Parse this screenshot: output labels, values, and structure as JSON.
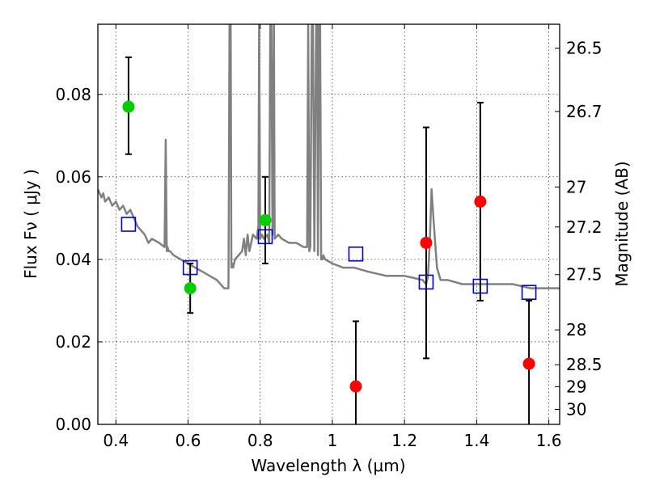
{
  "chart_data": {
    "type": "scatter",
    "title": "",
    "xlabel": "Wavelength  λ (μm)",
    "ylabel": "Flux  Fν  ( μJy )",
    "y2label": "Magnitude (AB)",
    "xlim": [
      0.35,
      1.63
    ],
    "ylim": [
      0.0,
      0.097
    ],
    "grid": true,
    "x_ticks": [
      {
        "value": 0.4,
        "label": "0.4"
      },
      {
        "value": 0.6,
        "label": "0.6"
      },
      {
        "value": 0.8,
        "label": "0.8"
      },
      {
        "value": 1.0,
        "label": "1"
      },
      {
        "value": 1.2,
        "label": "1.2"
      },
      {
        "value": 1.4,
        "label": "1.4"
      },
      {
        "value": 1.6,
        "label": "1.6"
      }
    ],
    "y_ticks": [
      {
        "value": 0.0,
        "label": "0.00"
      },
      {
        "value": 0.02,
        "label": "0.02"
      },
      {
        "value": 0.04,
        "label": "0.04"
      },
      {
        "value": 0.06,
        "label": "0.06"
      },
      {
        "value": 0.08,
        "label": "0.08"
      }
    ],
    "y2_ticks": [
      {
        "magnitude": 26.5,
        "label": "26.5"
      },
      {
        "magnitude": 26.7,
        "label": "26.7"
      },
      {
        "magnitude": 27.0,
        "label": "27"
      },
      {
        "magnitude": 27.2,
        "label": "27.2"
      },
      {
        "magnitude": 27.5,
        "label": "27.5"
      },
      {
        "magnitude": 28.0,
        "label": "28"
      },
      {
        "magnitude": 28.5,
        "label": "28.5"
      },
      {
        "magnitude": 29.0,
        "label": "29"
      },
      {
        "magnitude": 30.0,
        "label": "30"
      }
    ],
    "series": [
      {
        "kind": "line",
        "color": "#808080",
        "x": [
          0.35,
          0.36,
          0.365,
          0.37,
          0.38,
          0.39,
          0.4,
          0.41,
          0.42,
          0.43,
          0.44,
          0.45,
          0.46,
          0.47,
          0.48,
          0.485,
          0.49,
          0.5,
          0.52,
          0.535,
          0.538,
          0.541,
          0.543,
          0.546,
          0.55,
          0.56,
          0.58,
          0.6,
          0.62,
          0.64,
          0.66,
          0.68,
          0.7,
          0.712,
          0.715,
          0.718,
          0.72,
          0.722,
          0.725,
          0.73,
          0.74,
          0.75,
          0.755,
          0.76,
          0.765,
          0.77,
          0.78,
          0.79,
          0.795,
          0.797,
          0.8,
          0.805,
          0.81,
          0.82,
          0.825,
          0.828,
          0.831,
          0.834,
          0.838,
          0.84,
          0.85,
          0.86,
          0.88,
          0.9,
          0.92,
          0.93,
          0.933,
          0.936,
          0.939,
          0.943,
          0.946,
          0.95,
          0.955,
          0.958,
          0.96,
          0.963,
          0.966,
          0.969,
          0.972,
          0.975,
          0.98,
          1.0,
          1.03,
          1.06,
          1.1,
          1.15,
          1.2,
          1.25,
          1.26,
          1.265,
          1.27,
          1.275,
          1.28,
          1.29,
          1.3,
          1.32,
          1.36,
          1.4,
          1.45,
          1.5,
          1.55,
          1.6,
          1.63
        ],
        "y": [
          0.057,
          0.055,
          0.056,
          0.054,
          0.055,
          0.053,
          0.054,
          0.052,
          0.053,
          0.051,
          0.052,
          0.05,
          0.048,
          0.047,
          0.046,
          0.045,
          0.044,
          0.045,
          0.044,
          0.043,
          0.069,
          0.042,
          0.043,
          0.042,
          0.042,
          0.041,
          0.04,
          0.039,
          0.038,
          0.037,
          0.036,
          0.035,
          0.033,
          0.033,
          0.097,
          0.097,
          0.038,
          0.039,
          0.038,
          0.04,
          0.041,
          0.042,
          0.045,
          0.041,
          0.046,
          0.042,
          0.046,
          0.045,
          0.048,
          0.097,
          0.045,
          0.046,
          0.045,
          0.046,
          0.044,
          0.097,
          0.097,
          0.046,
          0.097,
          0.045,
          0.046,
          0.045,
          0.044,
          0.044,
          0.043,
          0.043,
          0.097,
          0.042,
          0.043,
          0.097,
          0.097,
          0.042,
          0.097,
          0.097,
          0.041,
          0.097,
          0.097,
          0.04,
          0.04,
          0.041,
          0.04,
          0.039,
          0.038,
          0.038,
          0.037,
          0.036,
          0.036,
          0.035,
          0.034,
          0.036,
          0.044,
          0.057,
          0.05,
          0.038,
          0.035,
          0.035,
          0.034,
          0.034,
          0.034,
          0.034,
          0.033,
          0.033,
          0.033
        ]
      },
      {
        "kind": "scatter",
        "marker": "circle",
        "color": "#00cc00",
        "points": [
          {
            "x": 0.435,
            "y": 0.077,
            "yerr_lo": 0.0655,
            "yerr_hi": 0.089
          },
          {
            "x": 0.606,
            "y": 0.033,
            "yerr_lo": 0.027,
            "yerr_hi": 0.039
          },
          {
            "x": 0.814,
            "y": 0.0495,
            "yerr_lo": 0.039,
            "yerr_hi": 0.06
          }
        ]
      },
      {
        "kind": "scatter",
        "marker": "circle",
        "color": "#ff0000",
        "points": [
          {
            "x": 1.065,
            "y": 0.0092,
            "yerr_lo": 0.0,
            "yerr_hi": 0.025
          },
          {
            "x": 1.26,
            "y": 0.044,
            "yerr_lo": 0.016,
            "yerr_hi": 0.072
          },
          {
            "x": 1.41,
            "y": 0.054,
            "yerr_lo": 0.03,
            "yerr_hi": 0.078
          },
          {
            "x": 1.545,
            "y": 0.0147,
            "yerr_lo": 0.0,
            "yerr_hi": 0.03
          }
        ]
      },
      {
        "kind": "scatter",
        "marker": "square",
        "color": "#0000cc",
        "points": [
          {
            "x": 0.435,
            "y": 0.0485
          },
          {
            "x": 0.606,
            "y": 0.038
          },
          {
            "x": 0.814,
            "y": 0.0455
          },
          {
            "x": 1.065,
            "y": 0.0413
          },
          {
            "x": 1.26,
            "y": 0.0345
          },
          {
            "x": 1.41,
            "y": 0.0335
          },
          {
            "x": 1.545,
            "y": 0.032
          }
        ]
      }
    ]
  }
}
